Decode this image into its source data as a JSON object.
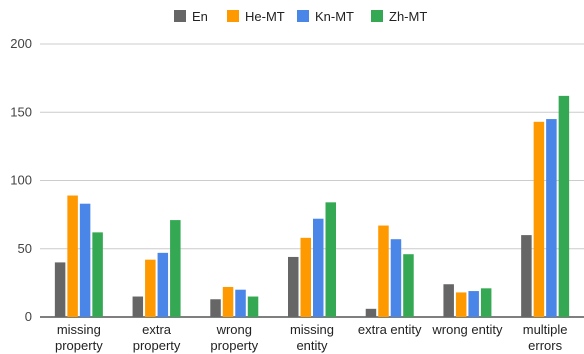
{
  "chart_data": {
    "type": "bar",
    "categories": [
      [
        "missing",
        "property"
      ],
      [
        "extra",
        "property"
      ],
      [
        "wrong",
        "property"
      ],
      [
        "missing",
        "entity"
      ],
      [
        "extra entity"
      ],
      [
        "wrong entity"
      ],
      [
        "multiple",
        "errors"
      ]
    ],
    "series": [
      {
        "name": "En",
        "color": "#666666",
        "values": [
          40,
          15,
          13,
          44,
          6,
          24,
          60
        ]
      },
      {
        "name": "He-MT",
        "color": "#ff9900",
        "values": [
          89,
          42,
          22,
          58,
          67,
          18,
          143
        ]
      },
      {
        "name": "Kn-MT",
        "color": "#4a86e8",
        "values": [
          83,
          47,
          20,
          72,
          57,
          19,
          145
        ]
      },
      {
        "name": "Zh-MT",
        "color": "#34a853",
        "values": [
          62,
          71,
          15,
          84,
          46,
          21,
          162
        ]
      }
    ],
    "ylim": [
      0,
      200
    ],
    "yticks": [
      0,
      50,
      100,
      150,
      200
    ],
    "grid": true,
    "legend": "top-center"
  }
}
